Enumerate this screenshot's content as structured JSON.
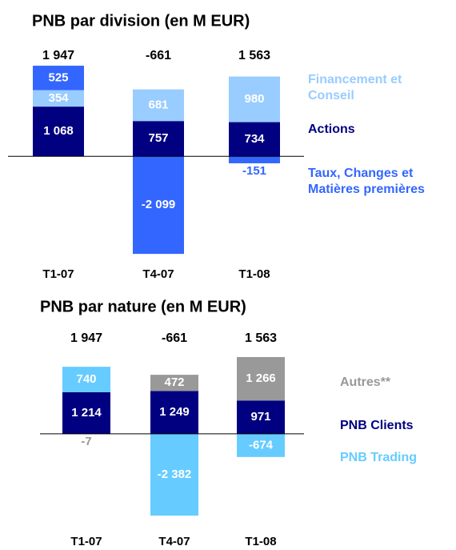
{
  "chart_data": [
    {
      "type": "stacked-bar",
      "title": "PNB par division (en M EUR)",
      "categories": [
        "T1-07",
        "T4-07",
        "T1-08"
      ],
      "totals": [
        1947,
        -661,
        1563
      ],
      "total_labels": [
        "1 947",
        "-661",
        "1 563"
      ],
      "series": [
        {
          "name": "Actions",
          "color": "#000080",
          "values": [
            1068,
            757,
            734
          ],
          "value_labels": [
            "1 068",
            "757",
            "734"
          ]
        },
        {
          "name": "Financement et Conseil",
          "color": "#99ccff",
          "values": [
            354,
            681,
            980
          ],
          "value_labels": [
            "354",
            "681",
            "980"
          ]
        },
        {
          "name": "Taux, Changes et Matières premières",
          "color": "#3366ff",
          "values": [
            525,
            -2099,
            -151
          ],
          "value_labels": [
            "525",
            "-2 099",
            "-151"
          ]
        }
      ],
      "ylim": [
        -2200,
        2000
      ]
    },
    {
      "type": "stacked-bar",
      "title": "PNB par nature (en M EUR)",
      "categories": [
        "T1-07",
        "T4-07",
        "T1-08"
      ],
      "totals": [
        1947,
        -661,
        1563
      ],
      "total_labels": [
        "1 947",
        "-661",
        "1 563"
      ],
      "series": [
        {
          "name": "PNB Clients",
          "color": "#000080",
          "values": [
            1214,
            1249,
            971
          ],
          "value_labels": [
            "1 214",
            "1 249",
            "971"
          ]
        },
        {
          "name": "Autres**",
          "color": "#999999",
          "values": [
            -7,
            472,
            1266
          ],
          "value_labels": [
            "-7",
            "472",
            "1 266"
          ]
        },
        {
          "name": "PNB Trading",
          "color": "#66ccff",
          "values": [
            740,
            -2382,
            -674
          ],
          "value_labels": [
            "740",
            "-2 382",
            "-674"
          ]
        }
      ],
      "ylim": [
        -2450,
        2400
      ]
    }
  ]
}
